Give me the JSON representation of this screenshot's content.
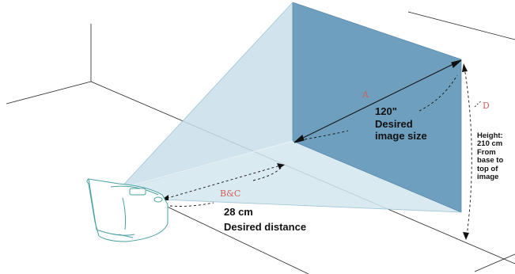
{
  "labels": {
    "a": "A",
    "bc": "B&C",
    "d": "D",
    "image_size_value": "120\"",
    "image_size_line1": "Desired",
    "image_size_line2": "image size",
    "distance_value": "28 cm",
    "distance_caption": "Desired distance",
    "height_line1": "Height:",
    "height_line2": "210 cm",
    "height_line3": "From",
    "height_line4": "base to",
    "height_line5": "top of",
    "height_line6": "image"
  },
  "colors": {
    "screen": "#6f9fbf",
    "beam": "#c9dfea",
    "room_lines": "#222222",
    "letter_labels": "#d0605a",
    "projector_outline": "#4aa0a0"
  }
}
